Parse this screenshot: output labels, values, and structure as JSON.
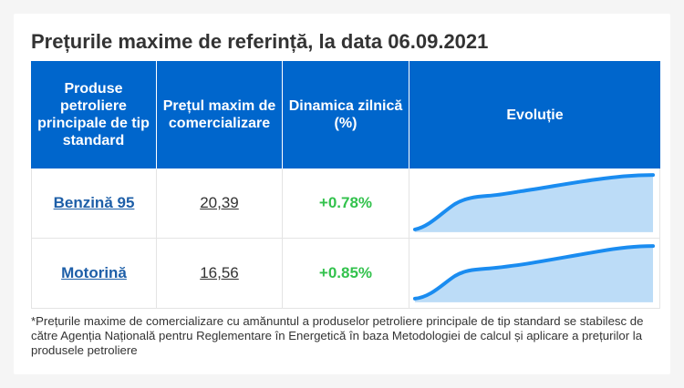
{
  "title": "Prețurile maxime de referință, la data 06.09.2021",
  "headers": {
    "product": "Produse petroliere principale de tip standard",
    "price": "Prețul maxim de comercializare",
    "change": "Dinamica zilnică (%)",
    "evolution": "Evoluție"
  },
  "rows": [
    {
      "product": "Benzină 95",
      "price": "20,39",
      "change": "+0.78%"
    },
    {
      "product": "Motorină",
      "price": "16,56",
      "change": "+0.85%"
    }
  ],
  "footnote": "*Prețurile maxime de comercializare cu amănuntul a produselor petroliere principale de tip standard se stabilesc de către Agenția Națională pentru Reglementare în Energetică în baza Metodologiei de calcul și aplicare a prețurilor la produsele petroliere",
  "colors": {
    "header_bg": "#0066cc",
    "product_link": "#1e5fa8",
    "change_positive": "#33c24d",
    "sparkline_line": "#1a8cf0",
    "sparkline_fill": "#bcdcf7"
  }
}
